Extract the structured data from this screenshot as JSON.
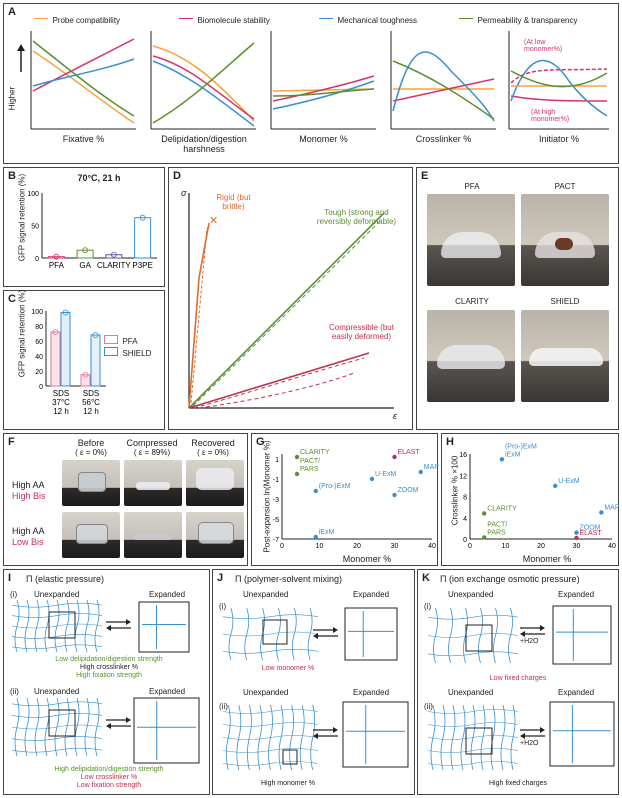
{
  "panelA": {
    "legend": [
      "Probe compatibility",
      "Biomolecule stability",
      "Mechanical toughness",
      "Permeability & transparency"
    ],
    "legend_colors": [
      "#f4a340",
      "#d6336c",
      "#3a8fd4",
      "#5b8f2e"
    ],
    "ylabel": "Higher",
    "subplots": [
      {
        "xlabel": "Fixative %"
      },
      {
        "xlabel": "Delipidation/digestion harshness"
      },
      {
        "xlabel": "Monomer %"
      },
      {
        "xlabel": "Crosslinker %"
      },
      {
        "xlabel": "Initiator %",
        "annot_top": "(At low monomer%)",
        "annot_bottom": "(At high monomer%)"
      }
    ]
  },
  "panelB": {
    "title": "70°C, 21 h",
    "ylabel": "GFP signal retention (%)",
    "yticks": [
      "0",
      "50",
      "100"
    ],
    "chart_data": {
      "type": "bar",
      "categories": [
        "PFA",
        "GA",
        "CLARITY",
        "P3PE"
      ],
      "values": [
        2,
        12,
        5,
        62
      ],
      "ylim": [
        0,
        100
      ]
    }
  },
  "panelC": {
    "ylabel": "GFP signal retention (%)",
    "yticks": [
      "0",
      "20",
      "40",
      "60",
      "80",
      "100"
    ],
    "legend": [
      "PFA",
      "SHIELD"
    ],
    "categories": [
      "SDS 37°C 12 h",
      "SDS 56°C 12 h"
    ],
    "chart_data": {
      "type": "bar",
      "categories": [
        "SDS 37°C 12 h",
        "SDS 56°C 12 h"
      ],
      "series": [
        {
          "name": "PFA",
          "values": [
            72,
            15
          ]
        },
        {
          "name": "SHIELD",
          "values": [
            98,
            68
          ]
        }
      ],
      "ylim": [
        0,
        100
      ]
    }
  },
  "panelD": {
    "ylabel": "σ",
    "xlabel": "ε",
    "labels": {
      "rigid": "Rigid (but brittle)",
      "tough": "Tough (strong and reversibly deformable)",
      "comp": "Compressible (but easily deformed)"
    }
  },
  "panelE": {
    "photos": [
      "PFA",
      "PACT",
      "CLARITY",
      "SHIELD"
    ]
  },
  "panelF": {
    "cols": [
      "Before",
      "Compressed",
      "Recovered"
    ],
    "strains": [
      "( ε = 0%)",
      "( ε = 89%)",
      "( ε = 0%)"
    ],
    "rows": [
      {
        "a": "High AA",
        "b": "High Bis"
      },
      {
        "a": "High AA",
        "b": "Low Bis"
      }
    ]
  },
  "panelG": {
    "ylabel": "Post-expansion ln(Monomer %)",
    "xlabel": "Monomer %",
    "xticks": [
      "0",
      "10",
      "20",
      "30",
      "40"
    ],
    "yticks": [
      "1",
      "-1",
      "-3",
      "-5",
      "-7"
    ],
    "points": [
      {
        "label": "CLARITY",
        "x": 4,
        "y": 1.2
      },
      {
        "label": "PACT/ PARS",
        "x": 4,
        "y": -0.5
      },
      {
        "label": "(Pro-)ExM",
        "x": 9,
        "y": -2.2
      },
      {
        "label": "iExM",
        "x": 9,
        "y": -6.8
      },
      {
        "label": "U-ExM",
        "x": 24,
        "y": -1
      },
      {
        "label": "ZOOM",
        "x": 30,
        "y": -2.6
      },
      {
        "label": "MAP",
        "x": 37,
        "y": -0.3
      },
      {
        "label": "ELAST",
        "x": 30,
        "y": 1.2
      }
    ]
  },
  "panelH": {
    "ylabel": "Crosslinker % ×100",
    "xlabel": "Monomer %",
    "xticks": [
      "0",
      "10",
      "20",
      "30",
      "40"
    ],
    "yticks": [
      "0",
      "4",
      "8",
      "12",
      "16"
    ],
    "points": [
      {
        "label": "(Pro-)ExM iExM",
        "x": 9,
        "y": 15
      },
      {
        "label": "U-ExM",
        "x": 24,
        "y": 10
      },
      {
        "label": "CLARITY",
        "x": 4,
        "y": 4.8
      },
      {
        "label": "MAP",
        "x": 37,
        "y": 5
      },
      {
        "label": "PACT/ PARS",
        "x": 4,
        "y": 0.3
      },
      {
        "label": "ZOOM",
        "x": 30,
        "y": 1.2
      },
      {
        "label": "ELAST",
        "x": 30,
        "y": 0.2
      }
    ]
  },
  "panelI": {
    "title": "Π (elastic pressure)",
    "unexp": "Unexpanded",
    "exp": "Expanded",
    "cap1": [
      "Low delipidation/digestion strength",
      "High crosslinker %",
      "High fixation strength"
    ],
    "cap2": [
      "High delipidation/digestion strength",
      "Low crosslinker %",
      "Low fixation strength"
    ]
  },
  "panelJ": {
    "title": "Π (polymer-solvent mixing)",
    "unexp": "Unexpanded",
    "exp": "Expanded",
    "cap1": "Low monomer %",
    "cap2": "High monomer %"
  },
  "panelK": {
    "title": "Π (ion exchange osmotic pressure)",
    "unexp": "Unexpanded",
    "exp": "Expanded",
    "water": "+H2O",
    "cap1": "Low fixed charges",
    "cap2": "High fixed charges"
  }
}
